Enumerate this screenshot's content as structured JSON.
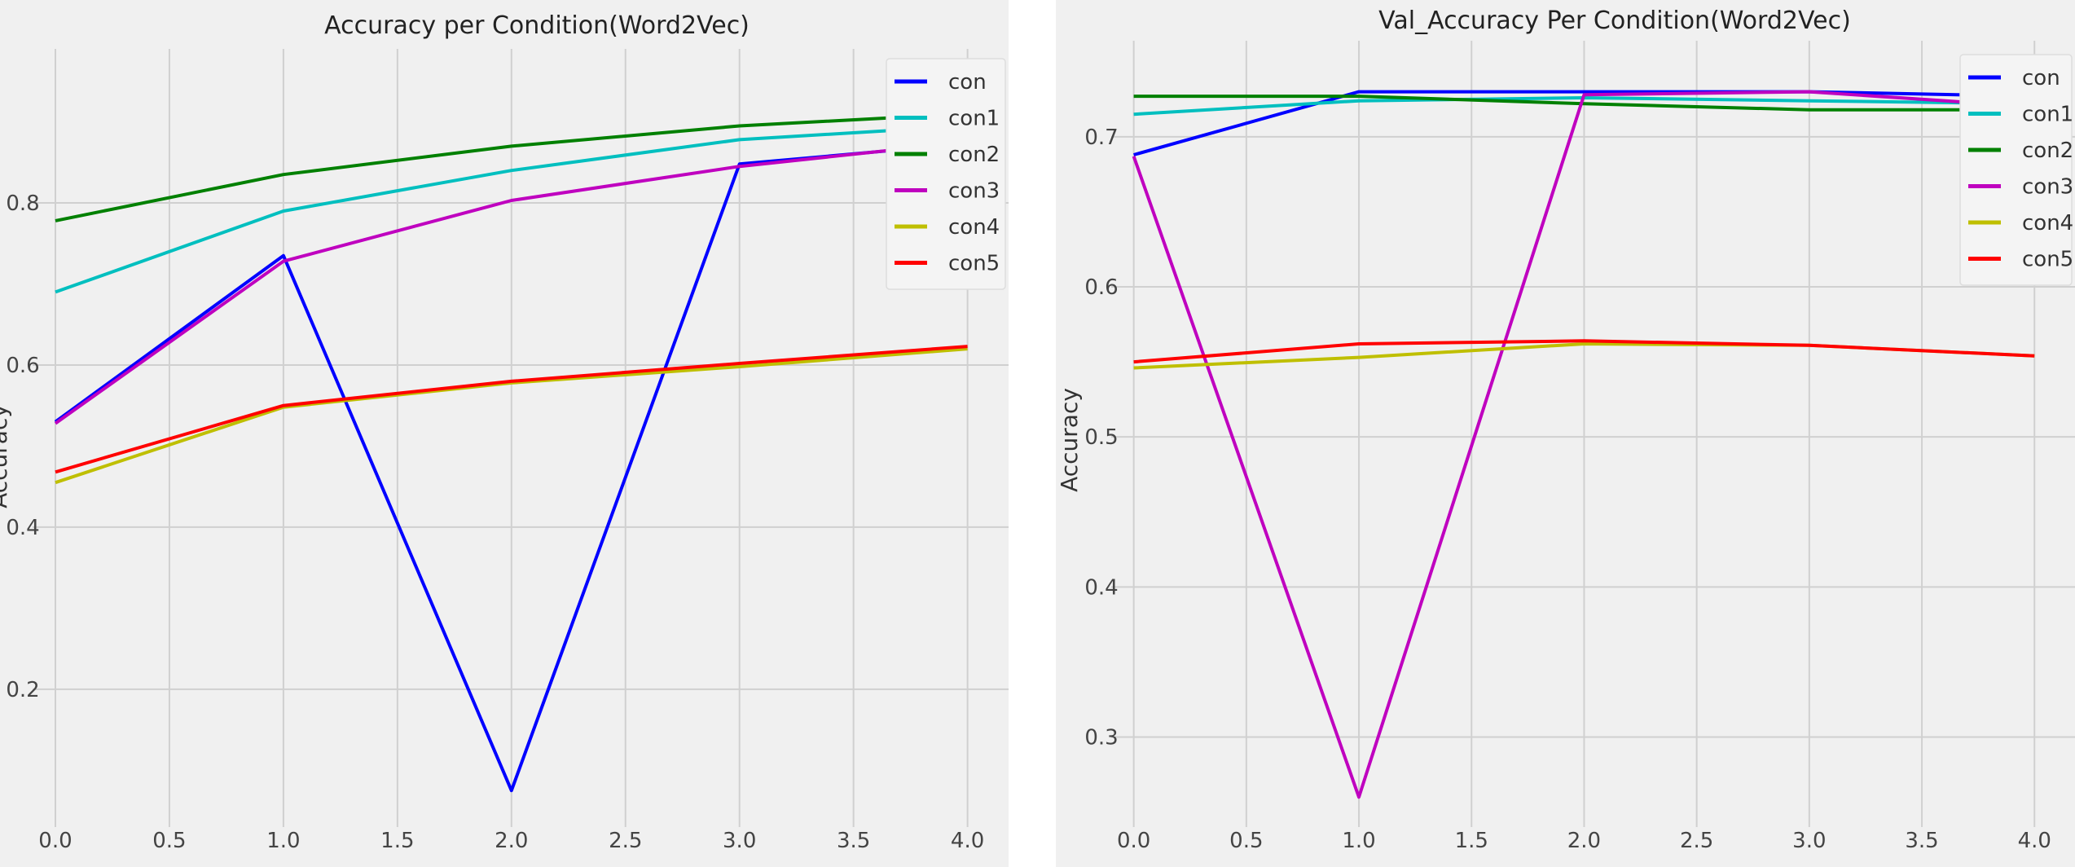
{
  "chart_data": [
    {
      "type": "line",
      "title": "Accuracy per Condition(Word2Vec)",
      "xlabel": "",
      "ylabel": "Accuracy",
      "xlim": [
        -0.1,
        4.18
      ],
      "ylim": [
        0.03,
        0.99
      ],
      "grid": true,
      "legend_position": "top-right",
      "x": [
        0,
        1,
        2,
        3,
        4
      ],
      "xticks": [
        "0.0",
        "0.5",
        "1.0",
        "1.5",
        "2.0",
        "2.5",
        "3.0",
        "3.5",
        "4.0"
      ],
      "yticks": [
        "0.2",
        "0.4",
        "0.6",
        "0.8"
      ],
      "series": [
        {
          "name": "con",
          "color": "#0000ff",
          "values": [
            0.53,
            0.735,
            0.075,
            0.848,
            0.873
          ]
        },
        {
          "name": "con1",
          "color": "#00bfbf",
          "values": [
            0.69,
            0.79,
            0.84,
            0.878,
            0.895
          ]
        },
        {
          "name": "con2",
          "color": "#008000",
          "values": [
            0.778,
            0.835,
            0.87,
            0.895,
            0.91
          ]
        },
        {
          "name": "con3",
          "color": "#bf00bf",
          "values": [
            0.528,
            0.728,
            0.803,
            0.845,
            0.875
          ]
        },
        {
          "name": "con4",
          "color": "#bfbf00",
          "values": [
            0.455,
            0.548,
            0.578,
            0.598,
            0.62
          ]
        },
        {
          "name": "con5",
          "color": "#ff0000",
          "values": [
            0.468,
            0.55,
            0.58,
            0.602,
            0.623
          ]
        }
      ]
    },
    {
      "type": "line",
      "title": "Val_Accuracy Per Condition(Word2Vec)",
      "xlabel": "",
      "ylabel": "Accuracy",
      "xlim": [
        -0.1,
        4.18
      ],
      "ylim": [
        0.24,
        0.764
      ],
      "grid": true,
      "legend_position": "top-right",
      "x": [
        0,
        1,
        2,
        3,
        4
      ],
      "xticks": [
        "0.0",
        "0.5",
        "1.0",
        "1.5",
        "2.0",
        "2.5",
        "3.0",
        "3.5",
        "4.0"
      ],
      "yticks": [
        "0.3",
        "0.4",
        "0.5",
        "0.6",
        "0.7"
      ],
      "series": [
        {
          "name": "con",
          "color": "#0000ff",
          "values": [
            0.688,
            0.73,
            0.73,
            0.73,
            0.727
          ]
        },
        {
          "name": "con1",
          "color": "#00bfbf",
          "values": [
            0.715,
            0.724,
            0.726,
            0.724,
            0.722
          ]
        },
        {
          "name": "con2",
          "color": "#008000",
          "values": [
            0.727,
            0.727,
            0.722,
            0.718,
            0.718
          ]
        },
        {
          "name": "con3",
          "color": "#bf00bf",
          "values": [
            0.687,
            0.26,
            0.728,
            0.73,
            0.72
          ]
        },
        {
          "name": "con4",
          "color": "#bfbf00",
          "values": [
            0.546,
            0.553,
            0.562,
            0.561,
            0.554
          ]
        },
        {
          "name": "con5",
          "color": "#ff0000",
          "values": [
            0.55,
            0.562,
            0.564,
            0.561,
            0.554
          ]
        }
      ]
    }
  ]
}
